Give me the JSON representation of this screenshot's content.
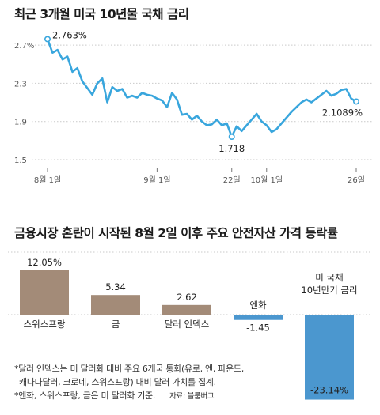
{
  "titles": {
    "top": "최근 3개월 미국 10년물 국채 금리",
    "bottom": "금융시장 혼란이 시작된 8월 2일 이후 주요 안전자산 가격 등락률"
  },
  "notes": [
    "*달러 인덱스는 미 달러화 대비 주요 6개국 통화(유로, 엔, 파운드,",
    "  캐나다달러, 크로네, 스위스프랑) 대비 달러 가치를 집계.",
    "*엔화, 스위스프랑, 금은 미 달러화 기준."
  ],
  "source": "자료: 블룸버그",
  "colors": {
    "line": "#39a6dd",
    "bar_positive": "#a38b78",
    "bar_negative": "#4b97cf",
    "grid": "#c9c9c9"
  },
  "chart_data": [
    {
      "type": "line",
      "title": "최근 3개월 미국 10년물 국채 금리",
      "ylim": [
        1.5,
        2.8
      ],
      "yticks": [
        1.5,
        1.9,
        2.3,
        2.7
      ],
      "ytick_labels": [
        "1.5",
        "1.9",
        "2.3",
        "2.7%"
      ],
      "xtick_labels": [
        "8월 1일",
        "9월 1일",
        "22일",
        "10월 1일",
        "26일"
      ],
      "xtick_index": [
        0,
        22,
        37,
        44,
        62
      ],
      "values": [
        2.763,
        2.62,
        2.65,
        2.55,
        2.58,
        2.42,
        2.46,
        2.32,
        2.25,
        2.18,
        2.3,
        2.35,
        2.1,
        2.26,
        2.22,
        2.24,
        2.15,
        2.17,
        2.15,
        2.2,
        2.18,
        2.17,
        2.14,
        2.12,
        2.05,
        2.2,
        2.13,
        1.97,
        1.98,
        1.92,
        1.96,
        1.9,
        1.86,
        1.87,
        1.92,
        1.86,
        1.88,
        1.74,
        1.85,
        1.8,
        1.86,
        1.92,
        1.98,
        1.9,
        1.86,
        1.79,
        1.82,
        1.88,
        1.94,
        2.0,
        2.05,
        2.1,
        2.13,
        2.1,
        2.14,
        2.18,
        2.22,
        2.17,
        2.19,
        2.23,
        2.24,
        2.14,
        2.109
      ],
      "annotations": [
        {
          "index": 0,
          "label": "2.763%"
        },
        {
          "index": 37,
          "label": "1.718"
        },
        {
          "index": 62,
          "label": "2.1089%"
        }
      ]
    },
    {
      "type": "bar",
      "title": "금융시장 혼란이 시작된 8월 2일 이후 주요 안전자산 가격 등락률",
      "categories": [
        "스위스프랑",
        "금",
        "달러 인덱스",
        "엔화",
        "미 국채 10년만기 금리"
      ],
      "values": [
        12.05,
        5.34,
        2.62,
        -1.45,
        -23.14
      ],
      "value_labels": [
        "12.05%",
        "5.34",
        "2.62",
        "-1.45",
        "-23.14%"
      ],
      "category_labels": [
        [
          "스위스프랑"
        ],
        [
          "금"
        ],
        [
          "달러 인덱스"
        ],
        [
          "엔화"
        ],
        [
          "미 국채",
          "10년만기 금리"
        ]
      ]
    }
  ]
}
